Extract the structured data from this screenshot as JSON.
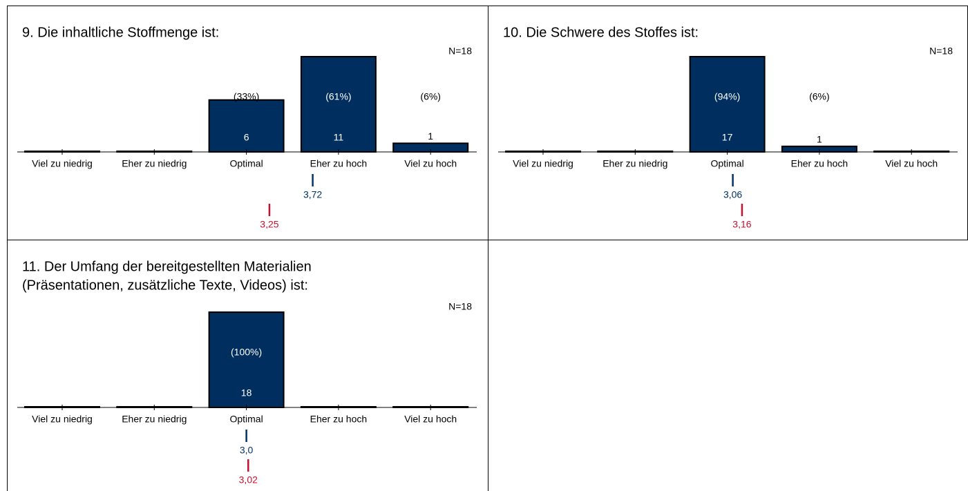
{
  "chart_data": [
    {
      "type": "bar",
      "title": [
        "9. Die inhaltliche Stoffmenge ist:"
      ],
      "n_label": "N=18",
      "categories": [
        "Viel zu niedrig",
        "Eher zu niedrig",
        "Optimal",
        "Eher zu hoch",
        "Viel zu hoch"
      ],
      "values": [
        0,
        0,
        6,
        11,
        1
      ],
      "shares": [
        null,
        null,
        33,
        61,
        6
      ],
      "share_labels": [
        null,
        null,
        "(33%)",
        "(61%)",
        "(6%)"
      ],
      "ylim": [
        0,
        11
      ],
      "color": "#002f5f",
      "mean": {
        "value": 3.72,
        "label": "3,72",
        "color": "#003366"
      },
      "reference_mean": {
        "value": 3.25,
        "label": "3,25",
        "color": "#c8102e"
      }
    },
    {
      "type": "bar",
      "title": [
        "10. Die Schwere des Stoffes ist:"
      ],
      "n_label": "N=18",
      "categories": [
        "Viel zu niedrig",
        "Eher zu niedrig",
        "Optimal",
        "Eher zu hoch",
        "Viel zu hoch"
      ],
      "values": [
        0,
        0,
        17,
        1,
        0
      ],
      "shares": [
        null,
        null,
        94,
        6,
        null
      ],
      "share_labels": [
        null,
        null,
        "(94%)",
        "(6%)",
        null
      ],
      "ylim": [
        0,
        17
      ],
      "color": "#002f5f",
      "mean": {
        "value": 3.06,
        "label": "3,06",
        "color": "#003366"
      },
      "reference_mean": {
        "value": 3.16,
        "label": "3,16",
        "color": "#c8102e"
      }
    },
    {
      "type": "bar",
      "title": [
        "11. Der Umfang der bereitgestellten Materialien",
        "(Präsentationen, zusätzliche Texte, Videos) ist:"
      ],
      "n_label": "N=18",
      "categories": [
        "Viel zu niedrig",
        "Eher zu niedrig",
        "Optimal",
        "Eher zu hoch",
        "Viel zu hoch"
      ],
      "values": [
        0,
        0,
        18,
        0,
        0
      ],
      "shares": [
        null,
        null,
        100,
        null,
        null
      ],
      "share_labels": [
        null,
        null,
        "(100%)",
        null,
        null
      ],
      "ylim": [
        0,
        18
      ],
      "color": "#002f5f",
      "mean": {
        "value": 3.0,
        "label": "3,0",
        "color": "#003366"
      },
      "reference_mean": {
        "value": 3.02,
        "label": "3,02",
        "color": "#c8102e"
      }
    }
  ]
}
